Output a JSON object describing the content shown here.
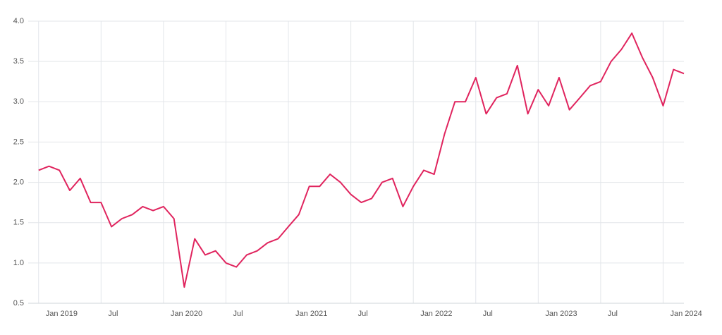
{
  "chart_data": {
    "type": "line",
    "x": [
      "2019-01",
      "2019-02",
      "2019-03",
      "2019-04",
      "2019-05",
      "2019-06",
      "2019-07",
      "2019-08",
      "2019-09",
      "2019-10",
      "2019-11",
      "2019-12",
      "2020-01",
      "2020-02",
      "2020-03",
      "2020-04",
      "2020-05",
      "2020-06",
      "2020-07",
      "2020-08",
      "2020-09",
      "2020-10",
      "2020-11",
      "2020-12",
      "2021-01",
      "2021-02",
      "2021-03",
      "2021-04",
      "2021-05",
      "2021-06",
      "2021-07",
      "2021-08",
      "2021-09",
      "2021-10",
      "2021-11",
      "2021-12",
      "2022-01",
      "2022-02",
      "2022-03",
      "2022-04",
      "2022-05",
      "2022-06",
      "2022-07",
      "2022-08",
      "2022-09",
      "2022-10",
      "2022-11",
      "2022-12",
      "2023-01",
      "2023-02",
      "2023-03",
      "2023-04",
      "2023-05",
      "2023-06",
      "2023-07",
      "2023-08",
      "2023-09",
      "2023-10",
      "2023-11",
      "2023-12",
      "2024-01",
      "2024-02",
      "2024-03"
    ],
    "values": [
      2.15,
      2.2,
      2.15,
      1.9,
      2.05,
      1.75,
      1.75,
      1.45,
      1.55,
      1.6,
      1.7,
      1.65,
      1.7,
      1.55,
      0.7,
      1.3,
      1.1,
      1.15,
      1.0,
      0.95,
      1.1,
      1.15,
      1.25,
      1.3,
      1.45,
      1.6,
      1.95,
      1.95,
      2.1,
      2.0,
      1.85,
      1.75,
      1.8,
      2.0,
      2.05,
      1.7,
      1.95,
      2.15,
      2.1,
      2.6,
      3.0,
      3.0,
      3.3,
      2.85,
      3.05,
      3.1,
      3.45,
      2.85,
      3.15,
      2.95,
      3.3,
      2.9,
      3.05,
      3.2,
      3.25,
      3.5,
      3.65,
      3.85,
      3.55,
      3.3,
      2.95,
      3.4,
      3.35
    ],
    "color": "#e0245e",
    "xlim": [
      "2018-12",
      "2024-03"
    ],
    "xticks": [
      {
        "value": "2019-01",
        "label": "Jan 2019"
      },
      {
        "value": "2019-07",
        "label": "Jul"
      },
      {
        "value": "2020-01",
        "label": "Jan 2020"
      },
      {
        "value": "2020-07",
        "label": "Jul"
      },
      {
        "value": "2021-01",
        "label": "Jan 2021"
      },
      {
        "value": "2021-07",
        "label": "Jul"
      },
      {
        "value": "2022-01",
        "label": "Jan 2022"
      },
      {
        "value": "2022-07",
        "label": "Jul"
      },
      {
        "value": "2023-01",
        "label": "Jan 2023"
      },
      {
        "value": "2023-07",
        "label": "Jul"
      },
      {
        "value": "2024-01",
        "label": "Jan 2024"
      }
    ],
    "ylim": [
      0.5,
      4
    ],
    "yticks": [
      0.5,
      {
        "value": 1,
        "label": "1.0"
      },
      1.5,
      {
        "value": 2,
        "label": "2.0"
      },
      2.5,
      {
        "value": 3,
        "label": "3.0"
      },
      3.5,
      {
        "value": 4,
        "label": "4.0"
      }
    ],
    "grid": true
  }
}
